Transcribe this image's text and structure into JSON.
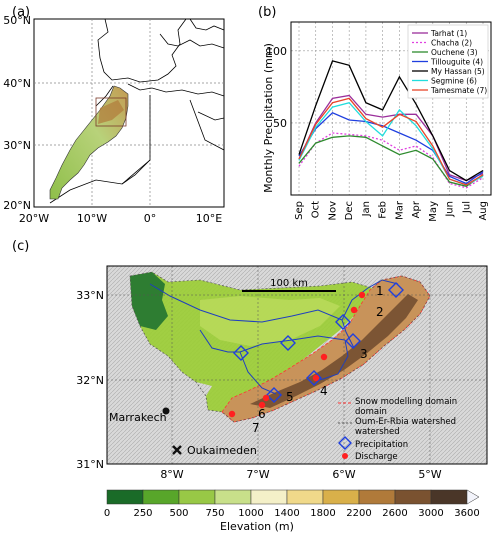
{
  "panel_a": {
    "label": "(a)",
    "lat_ticks": [
      "50°N",
      "40°N",
      "30°N",
      "20°N"
    ],
    "lon_ticks": [
      "20°W",
      "10°W",
      "0°",
      "10°E"
    ],
    "colors": {
      "land": "#ffffff",
      "morocco_low": "#8fbf4a",
      "morocco_high": "#c49a52",
      "border": "#000000"
    }
  },
  "panel_b": {
    "label": "(b)",
    "ylabel": "Monthly Precipitation (mm)"
  },
  "panel_c": {
    "label": "(c)",
    "lat_ticks": [
      "33°N",
      "32°N",
      "31°N"
    ],
    "lon_ticks": [
      "8°W",
      "7°W",
      "6°W",
      "5°W"
    ],
    "scalebar_label": "100 km",
    "cities": [
      {
        "name": "Marrakech",
        "marker": "dot"
      },
      {
        "name": "Oukaimeden",
        "marker": "cross"
      }
    ],
    "station_numbers": [
      "1",
      "2",
      "3",
      "4",
      "5",
      "6",
      "7"
    ],
    "legend": {
      "snow_domain": "Snow modelling domain",
      "watershed": "Oum-Er-Rbia watershed",
      "precipitation": "Precipitation",
      "discharge": "Discharge"
    },
    "colors": {
      "low": "#2e7d32",
      "mid": "#9acd32",
      "high": "#8b5a2b",
      "river": "#1f3fbf",
      "snow_domain": "#ff3333"
    }
  },
  "colorbar": {
    "title": "Elevation (m)",
    "ticks": [
      "0",
      "250",
      "500",
      "750",
      "1000",
      "1400",
      "1800",
      "2200",
      "2600",
      "3000",
      "3600"
    ],
    "colors": [
      "#1a6b28",
      "#58a62a",
      "#98c846",
      "#c8e08a",
      "#f4f0c8",
      "#f0d98a",
      "#d9b04a",
      "#b07a3a",
      "#7a5230",
      "#4a3628",
      "#f3f4fb"
    ]
  },
  "chart_data": {
    "type": "line",
    "categories": [
      "Sep",
      "Oct",
      "Nov",
      "Dec",
      "Jan",
      "Feb",
      "Mar",
      "Apr",
      "May",
      "Jun",
      "Jul",
      "Aug"
    ],
    "yticks": [
      50,
      100
    ],
    "ylim": [
      0,
      120
    ],
    "grid": true,
    "legend_position": "top-right",
    "series": [
      {
        "name": "Tarhat (1)",
        "color": "#9b2f9b",
        "dashed": false,
        "values": [
          25,
          50,
          67,
          69,
          56,
          54,
          56,
          56,
          41,
          14,
          10,
          15
        ]
      },
      {
        "name": "Chacha (2)",
        "color": "#e040e0",
        "dashed": true,
        "values": [
          20,
          36,
          43,
          42,
          41,
          38,
          31,
          34,
          26,
          8,
          5,
          12
        ]
      },
      {
        "name": "Ouchene (3)",
        "color": "#2e8b2e",
        "dashed": false,
        "values": [
          22,
          36,
          40,
          41,
          40,
          34,
          28,
          31,
          25,
          9,
          6,
          14
        ]
      },
      {
        "name": "Tillouguite (4)",
        "color": "#1f3fdf",
        "dashed": false,
        "values": [
          27,
          46,
          57,
          52,
          51,
          48,
          43,
          38,
          31,
          13,
          8,
          16
        ]
      },
      {
        "name": "My Hassan (5)",
        "color": "#000000",
        "dashed": false,
        "values": [
          28,
          62,
          93,
          90,
          64,
          59,
          82,
          63,
          41,
          17,
          10,
          17
        ]
      },
      {
        "name": "Segmine (6)",
        "color": "#22dddd",
        "dashed": false,
        "values": [
          24,
          47,
          61,
          64,
          51,
          41,
          59,
          48,
          32,
          11,
          7,
          13
        ]
      },
      {
        "name": "Tamesmate (7)",
        "color": "#e8452a",
        "dashed": false,
        "values": [
          25,
          49,
          64,
          67,
          53,
          47,
          56,
          51,
          34,
          11,
          7,
          14
        ]
      }
    ]
  }
}
